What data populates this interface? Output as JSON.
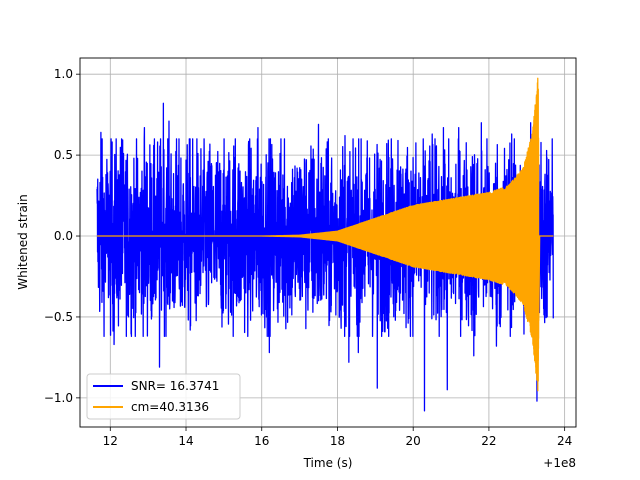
{
  "chart_data": {
    "type": "line",
    "title": "",
    "xlabel": "Time (s)",
    "ylabel": "Whitened strain",
    "x_offset_label": "+1e8",
    "xlim": [
      11.2,
      24.3
    ],
    "ylim": [
      -1.18,
      1.1
    ],
    "x_ticks": [
      12,
      14,
      16,
      18,
      20,
      22,
      24
    ],
    "x_tick_labels": [
      "12",
      "14",
      "16",
      "18",
      "20",
      "22",
      "24"
    ],
    "y_ticks": [
      -1.0,
      -0.5,
      0.0,
      0.5,
      1.0
    ],
    "y_tick_labels": [
      "−1.0",
      "−0.5",
      "0.0",
      "0.5",
      "1.0"
    ],
    "grid": true,
    "legend_position": "lower-left",
    "series": [
      {
        "name": "SNR= 16.3741",
        "color": "#0000ff",
        "style": "noise",
        "x_range": [
          11.65,
          23.7
        ],
        "typical_amplitude": 0.3,
        "peaks": [
          [
            11.75,
            0.64
          ],
          [
            12.3,
            0.6
          ],
          [
            12.9,
            0.67
          ],
          [
            13.4,
            0.82
          ],
          [
            13.55,
            0.71
          ],
          [
            15.3,
            0.6
          ],
          [
            15.9,
            0.67
          ],
          [
            16.6,
            0.6
          ],
          [
            17.5,
            0.69
          ],
          [
            18.2,
            0.62
          ],
          [
            19.6,
            0.59
          ],
          [
            20.5,
            0.63
          ],
          [
            20.8,
            0.67
          ],
          [
            21.2,
            0.67
          ],
          [
            21.8,
            0.7
          ],
          [
            22.6,
            0.63
          ],
          [
            23.1,
            0.7
          ],
          [
            23.27,
            1.0
          ]
        ],
        "troughs": [
          [
            12.1,
            -0.67
          ],
          [
            13.3,
            -0.81
          ],
          [
            16.2,
            -0.72
          ],
          [
            18.3,
            -0.78
          ],
          [
            18.55,
            -0.72
          ],
          [
            19.05,
            -0.94
          ],
          [
            20.3,
            -1.08
          ],
          [
            20.9,
            -0.95
          ],
          [
            21.6,
            -0.74
          ],
          [
            22.2,
            -0.68
          ],
          [
            23.27,
            -1.02
          ]
        ]
      },
      {
        "name": "cm=40.3136",
        "color": "#ffa500",
        "style": "chirp",
        "merger_time": 23.32,
        "t_start": 11.65,
        "t_end": 23.7,
        "envelope": [
          [
            11.65,
            0.0
          ],
          [
            16.0,
            0.0
          ],
          [
            17.0,
            0.005
          ],
          [
            18.0,
            0.03
          ],
          [
            19.0,
            0.11
          ],
          [
            20.0,
            0.19
          ],
          [
            21.0,
            0.23
          ],
          [
            22.0,
            0.27
          ],
          [
            22.5,
            0.31
          ],
          [
            22.9,
            0.42
          ],
          [
            23.15,
            0.64
          ],
          [
            23.3,
            1.0
          ],
          [
            23.34,
            0.0
          ],
          [
            23.7,
            0.0
          ]
        ]
      }
    ]
  }
}
